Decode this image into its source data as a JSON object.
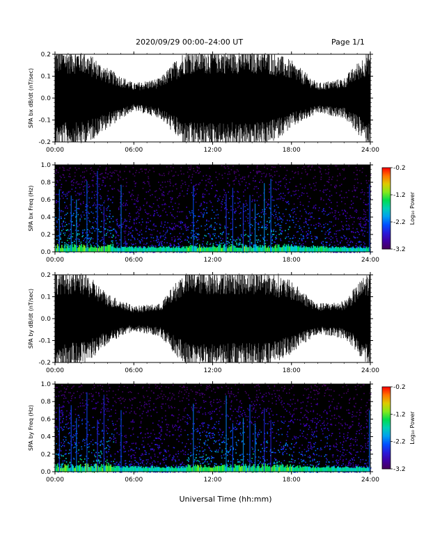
{
  "header": {
    "title": "2020/09/29  00:00–24:00 UT",
    "page": "Page 1/1"
  },
  "xaxis_label": "Universal Time (hh:mm)",
  "colors": {
    "background": "#ffffff",
    "wave": "#000000",
    "text": "#000000"
  },
  "chart_data": [
    {
      "type": "line",
      "ylabel": "SPA bx dB/dt (nT/sec)",
      "ylim": [
        -0.2,
        0.2
      ],
      "yticks": [
        "0.2",
        "0.1",
        "0.0",
        "-0.1",
        "-0.2"
      ],
      "xlim": [
        "00:00",
        "24:00"
      ],
      "xticks": [
        "00:00",
        "06:00",
        "12:00",
        "18:00",
        "24:00"
      ],
      "series": [
        {
          "x": [
            "00:00",
            "02:00",
            "04:00",
            "06:00",
            "08:00",
            "10:00",
            "12:00",
            "14:00",
            "16:00",
            "18:00",
            "20:00",
            "22:00",
            "24:00"
          ],
          "envelope_max": [
            0.2,
            0.2,
            0.12,
            0.06,
            0.08,
            0.2,
            0.2,
            0.2,
            0.2,
            0.15,
            0.06,
            0.08,
            0.2
          ],
          "envelope_min": [
            -0.2,
            -0.2,
            -0.12,
            -0.05,
            -0.08,
            -0.2,
            -0.2,
            -0.2,
            -0.2,
            -0.12,
            -0.06,
            -0.08,
            -0.2
          ]
        }
      ]
    },
    {
      "type": "heatmap",
      "ylabel": "SPA bx Freq (Hz)",
      "ylim": [
        0.0,
        1.0
      ],
      "yticks": [
        "1.0",
        "0.8",
        "0.6",
        "0.4",
        "0.2",
        "0.0"
      ],
      "xlim": [
        "00:00",
        "24:00"
      ],
      "xticks": [
        "00:00",
        "06:00",
        "12:00",
        "18:00",
        "24:00"
      ],
      "colorbar": {
        "label": "Log₁₀ Power",
        "range": [
          -3.2,
          -0.2
        ],
        "ticks": [
          "-0.2",
          "-1.2",
          "-2.2",
          "-3.2"
        ]
      }
    },
    {
      "type": "line",
      "ylabel": "SPA by dB/dt (nT/sec)",
      "ylim": [
        -0.2,
        0.2
      ],
      "yticks": [
        "0.2",
        "0.1",
        "0.0",
        "-0.1",
        "-0.2"
      ],
      "xlim": [
        "00:00",
        "24:00"
      ],
      "xticks": [
        "00:00",
        "06:00",
        "12:00",
        "18:00",
        "24:00"
      ],
      "series": [
        {
          "x": [
            "00:00",
            "02:00",
            "04:00",
            "06:00",
            "08:00",
            "10:00",
            "12:00",
            "14:00",
            "16:00",
            "18:00",
            "20:00",
            "22:00",
            "24:00"
          ],
          "envelope_max": [
            0.2,
            0.2,
            0.1,
            0.05,
            0.06,
            0.2,
            0.2,
            0.2,
            0.2,
            0.15,
            0.06,
            0.07,
            0.2
          ],
          "envelope_min": [
            -0.2,
            -0.2,
            -0.1,
            -0.05,
            -0.07,
            -0.2,
            -0.2,
            -0.2,
            -0.2,
            -0.14,
            -0.06,
            -0.08,
            -0.2
          ]
        }
      ]
    },
    {
      "type": "heatmap",
      "ylabel": "SPA by Freq (Hz)",
      "ylim": [
        0.0,
        1.0
      ],
      "yticks": [
        "1.0",
        "0.8",
        "0.6",
        "0.4",
        "0.2",
        "0.0"
      ],
      "xlim": [
        "00:00",
        "24:00"
      ],
      "xticks": [
        "00:00",
        "06:00",
        "12:00",
        "18:00",
        "24:00"
      ],
      "colorbar": {
        "label": "Log₁₀ Power",
        "range": [
          -3.2,
          -0.2
        ],
        "ticks": [
          "-0.2",
          "-1.2",
          "-2.2",
          "-3.2"
        ]
      }
    }
  ]
}
